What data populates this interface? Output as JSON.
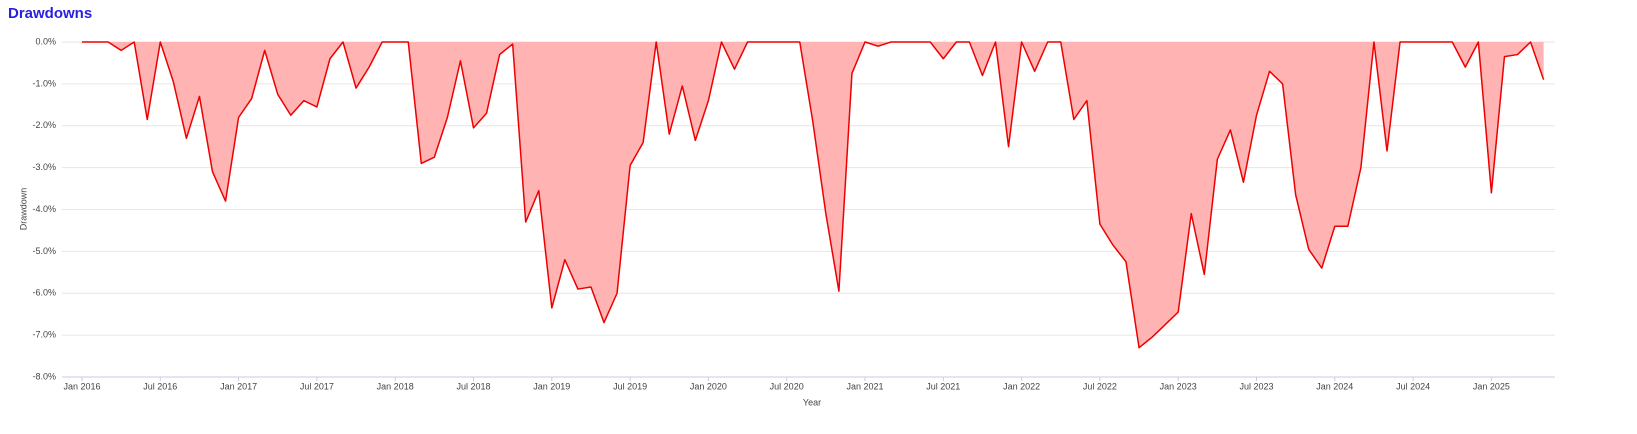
{
  "chart_data": {
    "type": "area",
    "title": "Drawdowns",
    "x_label": "Year",
    "y_label": "Drawdown",
    "x": [
      "2016-01",
      "2016-02",
      "2016-03",
      "2016-04",
      "2016-05",
      "2016-06",
      "2016-07",
      "2016-08",
      "2016-09",
      "2016-10",
      "2016-11",
      "2016-12",
      "2017-01",
      "2017-02",
      "2017-03",
      "2017-04",
      "2017-05",
      "2017-06",
      "2017-07",
      "2017-08",
      "2017-09",
      "2017-10",
      "2017-11",
      "2017-12",
      "2018-01",
      "2018-02",
      "2018-03",
      "2018-04",
      "2018-05",
      "2018-06",
      "2018-07",
      "2018-08",
      "2018-09",
      "2018-10",
      "2018-11",
      "2018-12",
      "2019-01",
      "2019-02",
      "2019-03",
      "2019-04",
      "2019-05",
      "2019-06",
      "2019-07",
      "2019-08",
      "2019-09",
      "2019-10",
      "2019-11",
      "2019-12",
      "2020-01",
      "2020-02",
      "2020-03",
      "2020-04",
      "2020-05",
      "2020-06",
      "2020-07",
      "2020-08",
      "2020-09",
      "2020-10",
      "2020-11",
      "2020-12",
      "2021-01",
      "2021-02",
      "2021-03",
      "2021-04",
      "2021-05",
      "2021-06",
      "2021-07",
      "2021-08",
      "2021-09",
      "2021-10",
      "2021-11",
      "2021-12",
      "2022-01",
      "2022-02",
      "2022-03",
      "2022-04",
      "2022-05",
      "2022-06",
      "2022-07",
      "2022-08",
      "2022-09",
      "2022-10",
      "2022-11",
      "2022-12",
      "2023-01",
      "2023-02",
      "2023-03",
      "2023-04",
      "2023-05",
      "2023-06",
      "2023-07",
      "2023-08",
      "2023-09",
      "2023-10",
      "2023-11",
      "2023-12",
      "2024-01",
      "2024-02",
      "2024-03",
      "2024-04",
      "2024-05",
      "2024-06",
      "2024-07",
      "2024-08",
      "2024-09",
      "2024-10",
      "2024-11",
      "2024-12",
      "2025-01",
      "2025-02",
      "2025-03",
      "2025-04",
      "2025-05"
    ],
    "values": [
      0,
      0,
      0,
      -0.2,
      0,
      -1.85,
      0,
      -0.95,
      -2.3,
      -1.3,
      -3.1,
      -3.8,
      -1.8,
      -1.35,
      -0.2,
      -1.25,
      -1.75,
      -1.4,
      -1.55,
      -0.4,
      0,
      -1.1,
      -0.6,
      0,
      0,
      0,
      -2.9,
      -2.75,
      -1.8,
      -0.45,
      -2.05,
      -1.7,
      -0.3,
      -0.05,
      -4.3,
      -3.55,
      -6.35,
      -5.2,
      -5.9,
      -5.85,
      -6.7,
      -6.0,
      -2.95,
      -2.4,
      0,
      -2.2,
      -1.05,
      -2.35,
      -1.4,
      0,
      -0.65,
      0,
      0,
      0,
      0,
      0,
      -1.9,
      -4.1,
      -5.95,
      -0.75,
      0,
      -0.1,
      0,
      0,
      0,
      0,
      -0.4,
      0,
      0,
      -0.8,
      0,
      -2.5,
      0,
      -0.7,
      0,
      0,
      -1.85,
      -1.4,
      -4.35,
      -4.85,
      -5.25,
      -7.3,
      -7.05,
      -6.75,
      -6.45,
      -4.1,
      -5.55,
      -2.8,
      -2.1,
      -3.35,
      -1.75,
      -0.7,
      -1.0,
      -3.65,
      -4.95,
      -5.4,
      -4.4,
      -4.4,
      -3.0,
      0,
      -2.6,
      0,
      0,
      0,
      0,
      0,
      -0.6,
      0,
      -3.6,
      -0.35,
      -0.3,
      0,
      -0.9
    ],
    "color": "#ee0000",
    "fill_color": "#ffb3b3",
    "ylim": [
      -8,
      0
    ],
    "yticks": [
      {
        "value": 0,
        "label": "0.0%"
      },
      {
        "value": -1,
        "label": "-1.0%"
      },
      {
        "value": -2,
        "label": "-2.0%"
      },
      {
        "value": -3,
        "label": "-3.0%"
      },
      {
        "value": -4,
        "label": "-4.0%"
      },
      {
        "value": -5,
        "label": "-5.0%"
      },
      {
        "value": -6,
        "label": "-6.0%"
      },
      {
        "value": -7,
        "label": "-7.0%"
      },
      {
        "value": -8,
        "label": "-8.0%"
      }
    ],
    "xticks": [
      {
        "value": "2016-01",
        "label": "Jan 2016"
      },
      {
        "value": "2016-07",
        "label": "Jul 2016"
      },
      {
        "value": "2017-01",
        "label": "Jan 2017"
      },
      {
        "value": "2017-07",
        "label": "Jul 2017"
      },
      {
        "value": "2018-01",
        "label": "Jan 2018"
      },
      {
        "value": "2018-07",
        "label": "Jul 2018"
      },
      {
        "value": "2019-01",
        "label": "Jan 2019"
      },
      {
        "value": "2019-07",
        "label": "Jul 2019"
      },
      {
        "value": "2020-01",
        "label": "Jan 2020"
      },
      {
        "value": "2020-07",
        "label": "Jul 2020"
      },
      {
        "value": "2021-01",
        "label": "Jan 2021"
      },
      {
        "value": "2021-07",
        "label": "Jul 2021"
      },
      {
        "value": "2022-01",
        "label": "Jan 2022"
      },
      {
        "value": "2022-07",
        "label": "Jul 2022"
      },
      {
        "value": "2023-01",
        "label": "Jan 2023"
      },
      {
        "value": "2023-07",
        "label": "Jul 2023"
      },
      {
        "value": "2024-01",
        "label": "Jan 2024"
      },
      {
        "value": "2024-07",
        "label": "Jul 2024"
      },
      {
        "value": "2025-01",
        "label": "Jan 2025"
      }
    ],
    "grid": true
  }
}
